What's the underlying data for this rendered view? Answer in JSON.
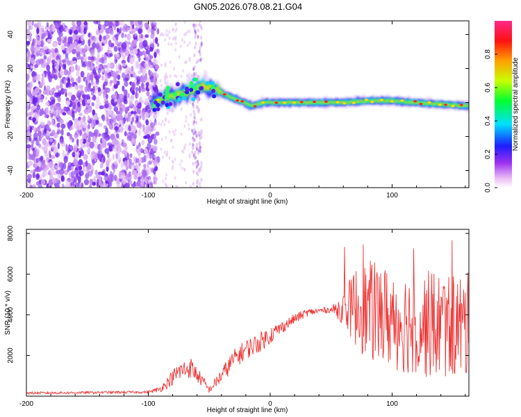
{
  "figure_title": "GN05.2026.078.08.21.G04",
  "chart_data": [
    {
      "type": "heatmap",
      "title": "GN05.2026.078.08.21.G04",
      "xlabel": "Height of straight line (km)",
      "ylabel": "Frequency (Hz)",
      "xlim": [
        -200,
        163
      ],
      "ylim": [
        -50,
        48
      ],
      "x_ticks": [
        -200,
        -100,
        0,
        100
      ],
      "x_tick_labels": [
        "-200",
        "-100",
        "0",
        "100"
      ],
      "y_ticks": [
        -40,
        -20,
        0,
        20,
        40
      ],
      "y_tick_labels": [
        "-40",
        "-20",
        "0",
        "20",
        "40"
      ],
      "colorbar": {
        "label": "Normalized spectral amplitude",
        "range": [
          0,
          1
        ],
        "ticks": [
          0.0,
          0.2,
          0.4,
          0.6,
          0.8
        ],
        "tick_labels": [
          "0.0",
          "0.2",
          "0.4",
          "0.6",
          "0.8"
        ]
      },
      "description_points": {
        "ridge_center_hz": [
          [
            -95,
            0
          ],
          [
            -85,
            3
          ],
          [
            -70,
            6
          ],
          [
            -55,
            10
          ],
          [
            -45,
            8
          ],
          [
            -35,
            4
          ],
          [
            -25,
            1
          ],
          [
            -15,
            -2
          ],
          [
            -5,
            0
          ],
          [
            10,
            0
          ],
          [
            40,
            0
          ],
          [
            60,
            0
          ],
          [
            80,
            1
          ],
          [
            100,
            1
          ],
          [
            120,
            0
          ],
          [
            140,
            -1
          ],
          [
            163,
            -2
          ]
        ]
      }
    },
    {
      "type": "line",
      "xlabel": "Height of straight line (km)",
      "ylabel": "SNR (10 * v/v)",
      "xlim": [
        -200,
        163
      ],
      "ylim": [
        0,
        8200
      ],
      "x_ticks": [
        -200,
        -100,
        0,
        100
      ],
      "x_tick_labels": [
        "-200",
        "-100",
        "0",
        "100"
      ],
      "y_ticks": [
        2000,
        4000,
        6000,
        8000
      ],
      "y_tick_labels": [
        "2000",
        "4000",
        "6000",
        "8000"
      ],
      "color": "#ee3333",
      "envelope": {
        "x": [
          -200,
          -100,
          -90,
          -75,
          -65,
          -55,
          -50,
          -40,
          -30,
          -20,
          -10,
          0,
          10,
          20,
          30,
          40,
          50,
          60,
          70,
          80,
          90,
          100,
          110,
          120,
          130,
          140,
          150,
          163
        ],
        "mean": [
          150,
          200,
          350,
          1200,
          1400,
          700,
          300,
          1000,
          1800,
          2300,
          2600,
          3000,
          3400,
          3800,
          4100,
          4200,
          4250,
          4300,
          4400,
          4200,
          4000,
          3800,
          3700,
          3600,
          3500,
          3500,
          3500,
          3400
        ],
        "spread": [
          60,
          60,
          150,
          500,
          500,
          300,
          150,
          400,
          500,
          500,
          500,
          450,
          300,
          250,
          200,
          150,
          150,
          800,
          2000,
          2500,
          2500,
          2600,
          2600,
          2600,
          2700,
          2700,
          2700,
          2700
        ]
      }
    }
  ]
}
